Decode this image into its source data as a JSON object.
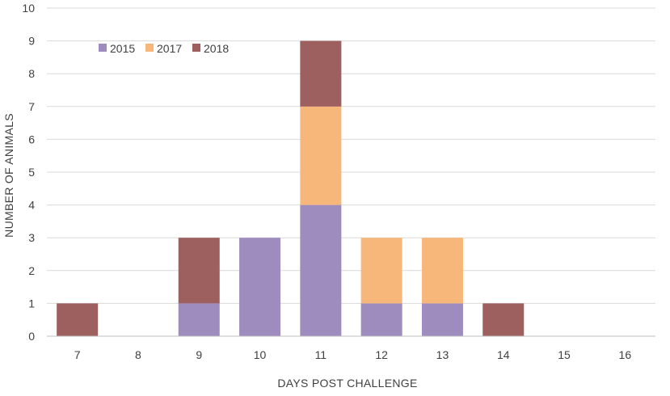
{
  "chart_data": {
    "type": "bar",
    "stacked": true,
    "categories": [
      "7",
      "8",
      "9",
      "10",
      "11",
      "12",
      "13",
      "14",
      "15",
      "16"
    ],
    "series": [
      {
        "name": "2015",
        "color": "#9f8cbf",
        "values": [
          0,
          0,
          1,
          3,
          4,
          1,
          1,
          0,
          0,
          0
        ]
      },
      {
        "name": "2017",
        "color": "#f7b77b",
        "values": [
          0,
          0,
          0,
          0,
          3,
          2,
          2,
          0,
          0,
          0
        ]
      },
      {
        "name": "2018",
        "color": "#9e5f5f",
        "values": [
          1,
          0,
          2,
          0,
          2,
          0,
          0,
          1,
          0,
          0
        ]
      }
    ],
    "xlabel": "DAYS POST CHALLENGE",
    "ylabel": "NUMBER OF ANIMALS",
    "ylim": [
      0,
      10
    ],
    "yticks": [
      "0",
      "1",
      "2",
      "3",
      "4",
      "5",
      "6",
      "7",
      "8",
      "9",
      "10"
    ],
    "grid": true,
    "legend": "top-left"
  }
}
